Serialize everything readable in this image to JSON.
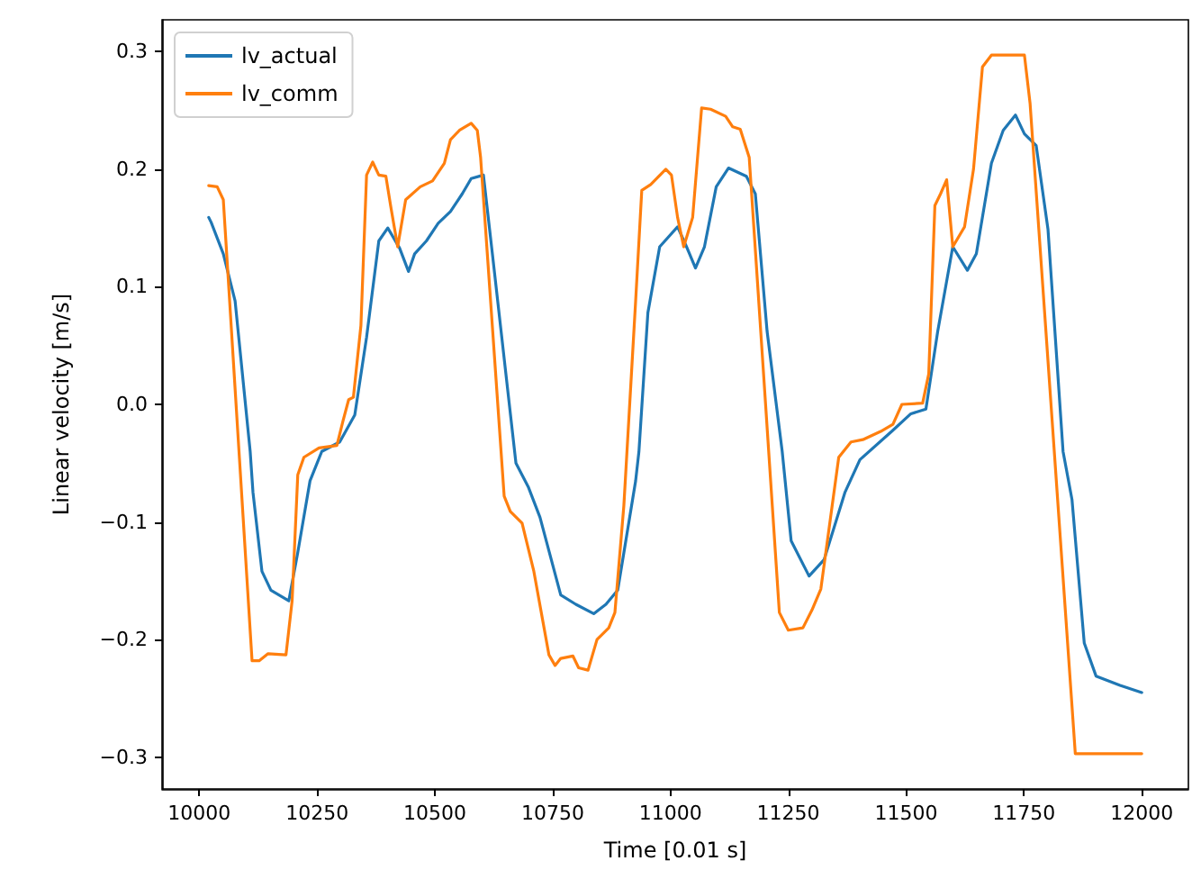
{
  "chart_data": {
    "type": "line",
    "xlabel": "Time [0.01 s]",
    "ylabel": "Linear velocity [m/s]",
    "xlim": [
      9921,
      12099
    ],
    "xticks": [
      10000,
      10250,
      10500,
      10750,
      11000,
      11250,
      11500,
      11750,
      12000
    ],
    "ylim": [
      -0.327,
      0.327
    ],
    "yticks": [
      {
        "value": -0.3,
        "label": "−0.3"
      },
      {
        "value": -0.2,
        "label": "−0.2"
      },
      {
        "value": -0.1,
        "label": "−0.1"
      },
      {
        "value": 0,
        "label": "0.0"
      },
      {
        "value": 0.1,
        "label": "0.1"
      },
      {
        "value": 0.2,
        "label": "0.2"
      },
      {
        "value": 0.3,
        "label": "0.3"
      }
    ],
    "grid": false,
    "legend": "top left",
    "marker": "none",
    "line_style": "solid",
    "series": [
      {
        "name": "lv_actual",
        "color": "#1f77b4",
        "x": [
          10020,
          10025,
          10051,
          10076,
          10108,
          10114,
          10133,
          10152,
          10190,
          10209,
          10235,
          10260,
          10298,
          10330,
          10355,
          10381,
          10400,
          10425,
          10444,
          10457,
          10482,
          10507,
          10533,
          10558,
          10577,
          10603,
          10622,
          10672,
          10698,
          10723,
          10767,
          10799,
          10837,
          10863,
          10888,
          10926,
          10933,
          10952,
          10977,
          11015,
          11034,
          11053,
          11072,
          11097,
          11123,
          11161,
          11180,
          11205,
          11237,
          11256,
          11294,
          11326,
          11370,
          11402,
          11472,
          11510,
          11542,
          11567,
          11599,
          11630,
          11649,
          11681,
          11706,
          11732,
          11751,
          11776,
          11801,
          11833,
          11852,
          11878,
          11903,
          11954,
          12000
        ],
        "values": [
          0.159,
          0.155,
          0.128,
          0.088,
          -0.04,
          -0.075,
          -0.142,
          -0.158,
          -0.167,
          -0.126,
          -0.065,
          -0.04,
          -0.032,
          -0.009,
          0.057,
          0.139,
          0.15,
          0.133,
          0.113,
          0.128,
          0.139,
          0.154,
          0.164,
          0.179,
          0.192,
          0.195,
          0.128,
          -0.05,
          -0.07,
          -0.096,
          -0.162,
          -0.17,
          -0.178,
          -0.17,
          -0.158,
          -0.065,
          -0.04,
          0.078,
          0.134,
          0.151,
          0.134,
          0.116,
          0.134,
          0.185,
          0.201,
          0.194,
          0.179,
          0.062,
          -0.04,
          -0.116,
          -0.146,
          -0.132,
          -0.075,
          -0.047,
          -0.022,
          -0.008,
          -0.004,
          0.062,
          0.134,
          0.114,
          0.128,
          0.205,
          0.233,
          0.246,
          0.23,
          0.22,
          0.149,
          -0.04,
          -0.081,
          -0.203,
          -0.231,
          -0.239,
          -0.245
        ]
      },
      {
        "name": "lv_comm",
        "color": "#ff7f0e",
        "x": [
          10020,
          10038,
          10051,
          10112,
          10127,
          10146,
          10184,
          10197,
          10209,
          10222,
          10254,
          10292,
          10305,
          10317,
          10327,
          10343,
          10355,
          10368,
          10381,
          10396,
          10406,
          10421,
          10438,
          10469,
          10495,
          10520,
          10533,
          10552,
          10577,
          10590,
          10597,
          10647,
          10660,
          10685,
          10710,
          10742,
          10755,
          10767,
          10793,
          10805,
          10825,
          10844,
          10869,
          10882,
          10901,
          10926,
          10939,
          10958,
          10990,
          11002,
          11015,
          11028,
          11047,
          11066,
          11085,
          11117,
          11132,
          11148,
          11167,
          11231,
          11250,
          11281,
          11300,
          11319,
          11357,
          11383,
          11408,
          11446,
          11472,
          11491,
          11535,
          11548,
          11561,
          11573,
          11586,
          11599,
          11624,
          11643,
          11662,
          11681,
          11751,
          11763,
          11859,
          12000
        ],
        "values": [
          0.186,
          0.185,
          0.174,
          -0.218,
          -0.218,
          -0.212,
          -0.213,
          -0.167,
          -0.06,
          -0.045,
          -0.037,
          -0.035,
          -0.014,
          0.004,
          0.006,
          0.067,
          0.195,
          0.206,
          0.195,
          0.194,
          0.169,
          0.134,
          0.174,
          0.185,
          0.19,
          0.205,
          0.225,
          0.233,
          0.239,
          0.233,
          0.21,
          -0.078,
          -0.091,
          -0.101,
          -0.142,
          -0.213,
          -0.222,
          -0.216,
          -0.214,
          -0.224,
          -0.226,
          -0.2,
          -0.19,
          -0.177,
          -0.086,
          0.088,
          0.182,
          0.187,
          0.2,
          0.195,
          0.159,
          0.134,
          0.159,
          0.252,
          0.251,
          0.245,
          0.236,
          0.234,
          0.21,
          -0.177,
          -0.192,
          -0.19,
          -0.175,
          -0.157,
          -0.045,
          -0.032,
          -0.03,
          -0.023,
          -0.017,
          0.0,
          0.001,
          0.026,
          0.169,
          0.179,
          0.191,
          0.134,
          0.151,
          0.2,
          0.287,
          0.297,
          0.297,
          0.256,
          -0.297,
          -0.297
        ]
      }
    ]
  }
}
